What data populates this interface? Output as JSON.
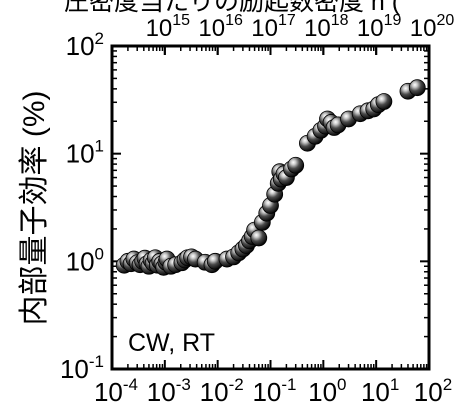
{
  "chart_data": {
    "type": "scatter",
    "top_title_fragment": "圧密度当たりの励起数密度 n (",
    "ylabel": "内部量子効率 (%)",
    "annotation": "CW, RT",
    "x_scale": "log",
    "y_scale": "log",
    "xlim": [
      0.0001,
      100
    ],
    "ylim": [
      0.1,
      100
    ],
    "x2_scale": "log",
    "x2lim": [
      100000000000000.0,
      1e+20
    ],
    "x_ticks": [
      {
        "value": 0.0001,
        "base": "10",
        "exp": "-4"
      },
      {
        "value": 0.001,
        "base": "10",
        "exp": "-3"
      },
      {
        "value": 0.01,
        "base": "10",
        "exp": "-2"
      },
      {
        "value": 0.1,
        "base": "10",
        "exp": "-1"
      },
      {
        "value": 1,
        "base": "10",
        "exp": "0"
      },
      {
        "value": 10,
        "base": "10",
        "exp": "1"
      },
      {
        "value": 100,
        "base": "10",
        "exp": "2"
      }
    ],
    "y_ticks": [
      {
        "value": 0.1,
        "base": "10",
        "exp": "-1"
      },
      {
        "value": 1,
        "base": "10",
        "exp": "0"
      },
      {
        "value": 10,
        "base": "10",
        "exp": "1"
      },
      {
        "value": 100,
        "base": "10",
        "exp": "2"
      }
    ],
    "x2_ticks": [
      {
        "value": 1000000000000000.0,
        "base": "10",
        "exp": "15"
      },
      {
        "value": 1e+16,
        "base": "10",
        "exp": "16"
      },
      {
        "value": 1e+17,
        "base": "10",
        "exp": "17"
      },
      {
        "value": 1e+18,
        "base": "10",
        "exp": "18"
      },
      {
        "value": 1e+19,
        "base": "10",
        "exp": "19"
      },
      {
        "value": 1e+20,
        "base": "10",
        "exp": "20"
      }
    ],
    "marker_style": "black glossy sphere",
    "points": [
      {
        "x": 0.00017,
        "y": 0.92
      },
      {
        "x": 0.0002,
        "y": 1.0
      },
      {
        "x": 0.00023,
        "y": 0.95
      },
      {
        "x": 0.00026,
        "y": 1.05
      },
      {
        "x": 0.0003,
        "y": 0.97
      },
      {
        "x": 0.00034,
        "y": 0.93
      },
      {
        "x": 0.00038,
        "y": 1.0
      },
      {
        "x": 0.00042,
        "y": 1.07
      },
      {
        "x": 0.00046,
        "y": 0.95
      },
      {
        "x": 0.0005,
        "y": 0.9
      },
      {
        "x": 0.00055,
        "y": 1.02
      },
      {
        "x": 0.0006,
        "y": 0.96
      },
      {
        "x": 0.00066,
        "y": 1.08
      },
      {
        "x": 0.00072,
        "y": 0.92
      },
      {
        "x": 0.0008,
        "y": 1.0
      },
      {
        "x": 0.00088,
        "y": 0.95
      },
      {
        "x": 0.00095,
        "y": 0.88
      },
      {
        "x": 0.00105,
        "y": 0.98
      },
      {
        "x": 0.0011,
        "y": 1.05
      },
      {
        "x": 0.0013,
        "y": 0.9
      },
      {
        "x": 0.0016,
        "y": 0.93
      },
      {
        "x": 0.0021,
        "y": 0.97
      },
      {
        "x": 0.0024,
        "y": 1.03
      },
      {
        "x": 0.0027,
        "y": 1.08
      },
      {
        "x": 0.0032,
        "y": 1.1
      },
      {
        "x": 0.0038,
        "y": 1.05
      },
      {
        "x": 0.0058,
        "y": 0.98
      },
      {
        "x": 0.0078,
        "y": 0.93
      },
      {
        "x": 0.009,
        "y": 1.0
      },
      {
        "x": 0.015,
        "y": 1.05
      },
      {
        "x": 0.02,
        "y": 1.1
      },
      {
        "x": 0.025,
        "y": 1.2
      },
      {
        "x": 0.03,
        "y": 1.3
      },
      {
        "x": 0.035,
        "y": 1.4
      },
      {
        "x": 0.04,
        "y": 1.55
      },
      {
        "x": 0.045,
        "y": 1.7
      },
      {
        "x": 0.05,
        "y": 1.95
      },
      {
        "x": 0.06,
        "y": 1.65
      },
      {
        "x": 0.07,
        "y": 2.3
      },
      {
        "x": 0.085,
        "y": 2.8
      },
      {
        "x": 0.1,
        "y": 3.3
      },
      {
        "x": 0.12,
        "y": 4.2
      },
      {
        "x": 0.14,
        "y": 5.3
      },
      {
        "x": 0.15,
        "y": 6.8
      },
      {
        "x": 0.16,
        "y": 5.8
      },
      {
        "x": 0.18,
        "y": 6.5
      },
      {
        "x": 0.2,
        "y": 6.0
      },
      {
        "x": 0.25,
        "y": 7.2
      },
      {
        "x": 0.3,
        "y": 7.8
      },
      {
        "x": 0.5,
        "y": 12.5
      },
      {
        "x": 0.7,
        "y": 14.5
      },
      {
        "x": 0.9,
        "y": 16.5
      },
      {
        "x": 1.1,
        "y": 18.0
      },
      {
        "x": 1.2,
        "y": 21.0
      },
      {
        "x": 1.4,
        "y": 19.5
      },
      {
        "x": 1.6,
        "y": 17.5
      },
      {
        "x": 1.9,
        "y": 18.5
      },
      {
        "x": 3.0,
        "y": 21.0
      },
      {
        "x": 5.0,
        "y": 23.5
      },
      {
        "x": 7.0,
        "y": 25.0
      },
      {
        "x": 9.0,
        "y": 26.0
      },
      {
        "x": 11.0,
        "y": 28.5
      },
      {
        "x": 14.0,
        "y": 30.5
      },
      {
        "x": 40.0,
        "y": 38.0
      },
      {
        "x": 60.0,
        "y": 41.0
      }
    ]
  }
}
